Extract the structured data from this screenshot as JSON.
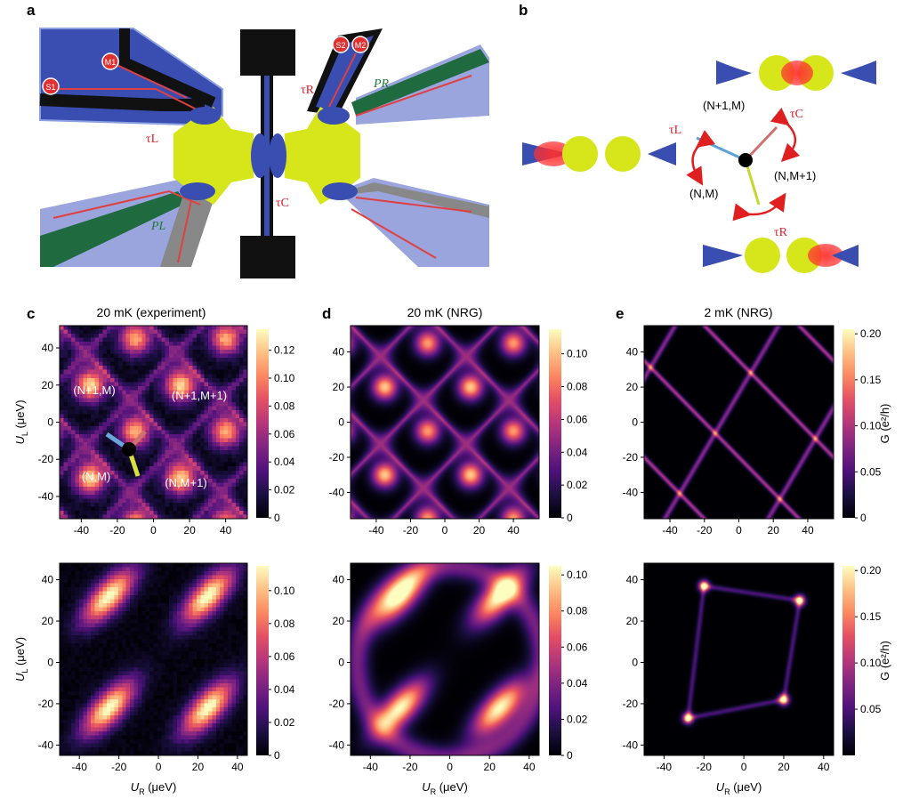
{
  "panels": {
    "a": "a",
    "b": "b",
    "c": "c",
    "d": "d",
    "e": "e"
  },
  "device": {
    "contacts": [
      "S1",
      "M1",
      "S2",
      "M2"
    ],
    "tau_L": "τL",
    "tau_R": "τR",
    "tau_C": "τC",
    "P_L": "PL",
    "P_R": "PR"
  },
  "schematic": {
    "states": [
      "(N+1,M)",
      "(N,M+1)",
      "(N,M)"
    ],
    "tau_L": "τL",
    "tau_C": "τC",
    "tau_R": "τR"
  },
  "heatmaps": [
    {
      "id": "c_top",
      "title": "20 mK (experiment)",
      "style": "exp_top",
      "xlim": [
        -52,
        52
      ],
      "ylim": [
        -52,
        52
      ],
      "xticks": [
        -40,
        -20,
        0,
        20,
        40
      ],
      "yticks": [
        -40,
        -20,
        0,
        20,
        40
      ],
      "cbar_max": 0.135,
      "cbar_ticks": [
        "0",
        "0.02",
        "0.04",
        "0.06",
        "0.08",
        "0.10",
        "0.12"
      ],
      "ylabel": "U",
      "ylabel_sub": "L",
      "ylabel_unit": "(μeV)",
      "region_labels": [
        "(N+1,M)",
        "(N+1,M+1)",
        "(N,M)",
        "(N,M+1)"
      ]
    },
    {
      "id": "d_top",
      "title": "20 mK (NRG)",
      "style": "nrg_top",
      "xlim": [
        -55,
        55
      ],
      "ylim": [
        -55,
        55
      ],
      "xticks": [
        -40,
        -20,
        0,
        20,
        40
      ],
      "yticks": [
        -40,
        -20,
        0,
        20,
        40
      ],
      "cbar_max": 0.115,
      "cbar_ticks": [
        "0",
        "0.02",
        "0.04",
        "0.06",
        "0.08",
        "0.10"
      ]
    },
    {
      "id": "e_top",
      "title": "2 mK (NRG)",
      "style": "lowT_top",
      "xlim": [
        -55,
        55
      ],
      "ylim": [
        -55,
        55
      ],
      "xticks": [
        -40,
        -20,
        0,
        20,
        40
      ],
      "yticks": [
        -40,
        -20,
        0,
        20,
        40
      ],
      "cbar_max": 0.205,
      "cbar_ticks": [
        "0",
        "0.05",
        "0.10",
        "0.15",
        "0.20"
      ],
      "cbar_label": "G (e²/h)"
    },
    {
      "id": "c_bot",
      "style": "exp_bot",
      "xlim": [
        -50,
        45
      ],
      "ylim": [
        -45,
        48
      ],
      "xticks": [
        -40,
        -20,
        0,
        20,
        40
      ],
      "yticks": [
        -40,
        -20,
        0,
        20,
        40
      ],
      "cbar_max": 0.115,
      "cbar_ticks": [
        "0",
        "0.02",
        "0.04",
        "0.06",
        "0.08",
        "0.10"
      ],
      "ylabel": "U",
      "ylabel_sub": "L",
      "ylabel_unit": "(μeV)",
      "xlabel": "U",
      "xlabel_sub": "R",
      "xlabel_unit": "(μeV)"
    },
    {
      "id": "d_bot",
      "style": "nrg_bot",
      "xlim": [
        -50,
        45
      ],
      "ylim": [
        -45,
        48
      ],
      "xticks": [
        -40,
        -20,
        0,
        20,
        40
      ],
      "yticks": [
        -40,
        -20,
        0,
        20,
        40
      ],
      "cbar_max": 0.105,
      "cbar_ticks": [
        "0",
        "0.02",
        "0.04",
        "0.06",
        "0.08",
        "0.10"
      ],
      "xlabel": "U",
      "xlabel_sub": "R",
      "xlabel_unit": "(μeV)"
    },
    {
      "id": "e_bot",
      "style": "lowT_bot",
      "xlim": [
        -50,
        45
      ],
      "ylim": [
        -45,
        48
      ],
      "xticks": [
        -40,
        -20,
        0,
        20,
        40
      ],
      "yticks": [
        -40,
        -20,
        0,
        20,
        40
      ],
      "cbar_max": 0.205,
      "cbar_ticks": [
        "0.05",
        "0.10",
        "0.15",
        "0.20"
      ],
      "cbar_label": "G (e²/h)",
      "xlabel": "U",
      "xlabel_sub": "R",
      "xlabel_unit": "(μeV)"
    }
  ]
}
